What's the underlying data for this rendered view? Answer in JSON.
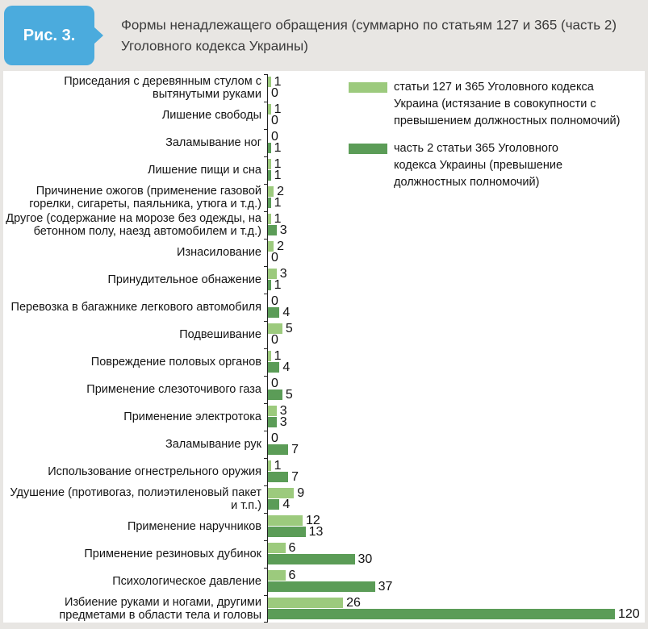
{
  "theme": {
    "accent_blue": "#4babdd",
    "bg_gray": "#e8e6e3",
    "panel_white": "#ffffff",
    "series1_green_light": "#9cca7d",
    "series2_green_dark": "#5b9c57"
  },
  "figure": {
    "badge": "Рис. 3.",
    "title": "Формы ненадлежащего обращения (суммарно по статьям 127 и 365 (часть 2) Уголовного кодекса Украины)"
  },
  "chart_data": {
    "type": "bar",
    "orientation": "horizontal",
    "title": "Формы ненадлежащего обращения (суммарно по статьям 127 и 365 (часть 2) Уголовного кодекса Украины)",
    "xlabel": "",
    "ylabel": "",
    "xmax": 120,
    "grid": false,
    "value_labels": true,
    "legend_position": "top-right",
    "categories": [
      "Приседания с деревянным стулом с вытянутыми руками",
      "Лишение свободы",
      "Заламывание ног",
      "Лишение пищи и сна",
      "Причинение ожогов (применение газовой горелки, сигареты, паяльника, утюга и т.д.)",
      "Другое (содержание на морозе без одежды, на бетонном полу, наезд автомобилем и т.д.)",
      "Изнасилование",
      "Принудительное обнажение",
      "Перевозка в багажнике легкового автомобиля",
      "Подвешивание",
      "Повреждение половых органов",
      "Применение слезоточивого газа",
      "Применение электротока",
      "Заламывание рук",
      "Использование огнестрельного оружия",
      "Удушение (противогаз, полиэтиленовый пакет и т.п.)",
      "Применение наручников",
      "Применение резиновых дубинок",
      "Психологическое давление",
      "Избиение руками и ногами, другими предметами в области тела и головы"
    ],
    "series": [
      {
        "name": "статьи 127 и 365 Уголовного кодекса Украина (истязание в совокупности с превышением должностных полномочий)",
        "color": "#9cca7d",
        "values": [
          1,
          1,
          0,
          1,
          2,
          1,
          2,
          3,
          0,
          5,
          1,
          0,
          3,
          0,
          1,
          9,
          12,
          6,
          6,
          26
        ]
      },
      {
        "name": "часть 2 статьи 365 Уголовного кодекса Украины (превышение должностных полномочий)",
        "color": "#5b9c57",
        "values": [
          0,
          0,
          1,
          1,
          1,
          3,
          0,
          1,
          4,
          0,
          4,
          5,
          3,
          7,
          7,
          4,
          13,
          30,
          37,
          120
        ]
      }
    ]
  }
}
